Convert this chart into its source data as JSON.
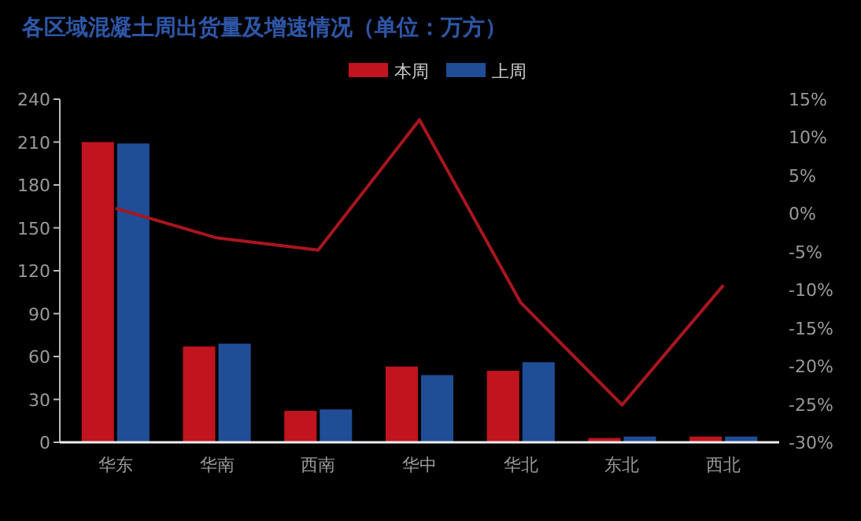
{
  "chart_data": {
    "type": "bar",
    "title": "各区域混凝土周出货量及增速情况（单位：万方）",
    "categories": [
      "华东",
      "华南",
      "西南",
      "华中",
      "华北",
      "东北",
      "西北"
    ],
    "series": [
      {
        "name": "本周",
        "color": "#c0141e",
        "values": [
          210,
          67,
          22,
          53,
          50,
          3,
          4
        ]
      },
      {
        "name": "上周",
        "color": "#1f4e96",
        "values": [
          209,
          69,
          23,
          47,
          56,
          4,
          4
        ]
      },
      {
        "type": "line",
        "axis": "y2",
        "color": "#a81620",
        "values": [
          0.7,
          -3.2,
          -4.8,
          12.3,
          -11.7,
          -25.1,
          -9.4
        ]
      }
    ],
    "ylim": [
      0,
      240
    ],
    "yticks": [
      0,
      30,
      60,
      90,
      120,
      150,
      180,
      210,
      240
    ],
    "y2lim": [
      -30,
      15
    ],
    "y2ticks": [
      {
        "value": -30,
        "label": "-30%"
      },
      {
        "value": -25,
        "label": "-25%"
      },
      {
        "value": -20,
        "label": "-20%"
      },
      {
        "value": -15,
        "label": "-15%"
      },
      {
        "value": -10,
        "label": "-10%"
      },
      {
        "value": -5,
        "label": "-5%"
      },
      {
        "value": 0,
        "label": "0%"
      },
      {
        "value": 5,
        "label": "5%"
      },
      {
        "value": 10,
        "label": "10%"
      },
      {
        "value": 15,
        "label": "15%"
      }
    ],
    "legend": "top",
    "grid": false
  }
}
